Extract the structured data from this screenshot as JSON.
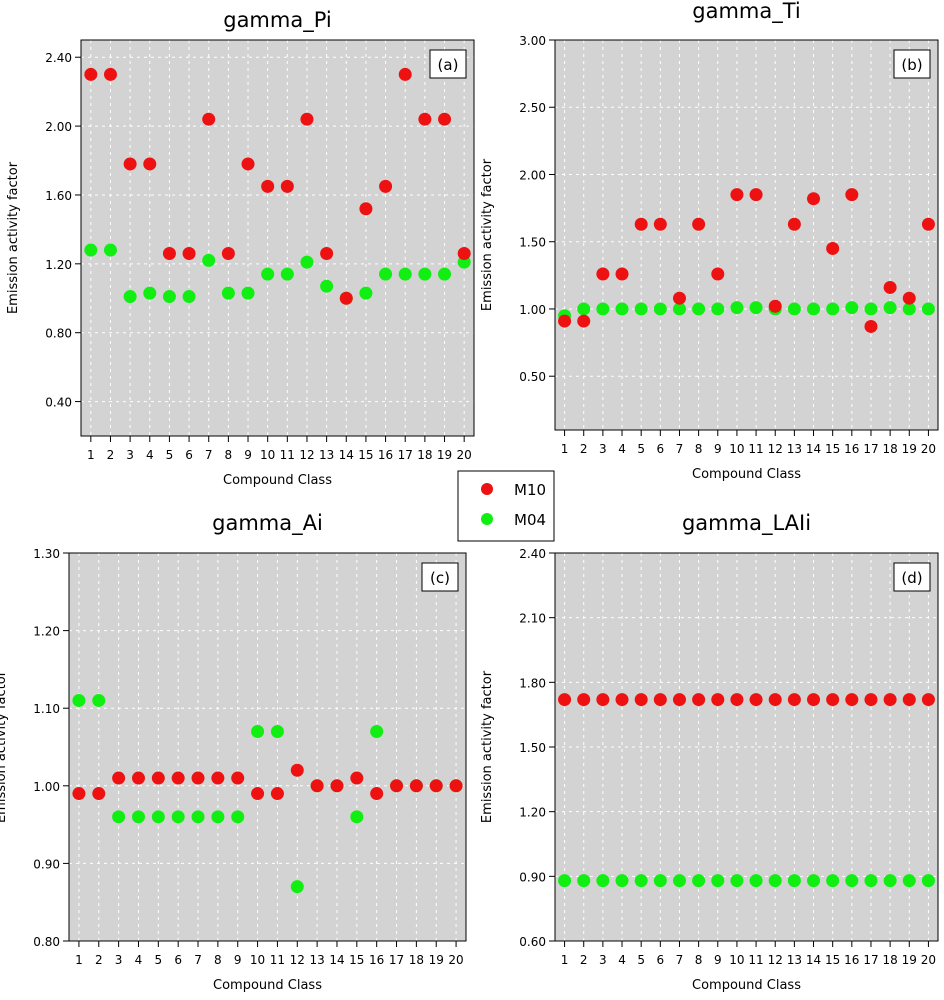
{
  "legend": {
    "items": [
      {
        "label": "M10",
        "color": "#ee1111"
      },
      {
        "label": "M04",
        "color": "#11ee11"
      }
    ]
  },
  "chart_data": [
    {
      "type": "scatter",
      "title": "gamma_Pi",
      "panel_label": "(a)",
      "xlabel": "Compound Class",
      "ylabel": "Emission activity factor",
      "x": [
        1,
        2,
        3,
        4,
        5,
        6,
        7,
        8,
        9,
        10,
        11,
        12,
        13,
        14,
        15,
        16,
        17,
        18,
        19,
        20
      ],
      "ylim": [
        0.2,
        2.5
      ],
      "yticks": [
        "0.40",
        "0.80",
        "1.20",
        "1.60",
        "2.00",
        "2.40"
      ],
      "background": "#d3d3d3",
      "grid": true,
      "legend_position": "center",
      "series": [
        {
          "name": "M10",
          "color": "#ee1111",
          "values": [
            2.3,
            2.3,
            1.78,
            1.78,
            1.26,
            1.26,
            2.04,
            1.26,
            1.78,
            1.65,
            1.65,
            2.04,
            1.26,
            1.0,
            1.52,
            1.65,
            2.3,
            2.04,
            2.04,
            1.26
          ]
        },
        {
          "name": "M04",
          "color": "#11ee11",
          "values": [
            1.28,
            1.28,
            1.01,
            1.03,
            1.01,
            1.01,
            1.22,
            1.03,
            1.03,
            1.14,
            1.14,
            1.21,
            1.07,
            1.0,
            1.03,
            1.14,
            1.14,
            1.14,
            1.14,
            1.21
          ]
        }
      ]
    },
    {
      "type": "scatter",
      "title": "gamma_Ti",
      "panel_label": "(b)",
      "xlabel": "Compound Class",
      "ylabel": "Emission activity factor",
      "x": [
        1,
        2,
        3,
        4,
        5,
        6,
        7,
        8,
        9,
        10,
        11,
        12,
        13,
        14,
        15,
        16,
        17,
        18,
        19,
        20
      ],
      "ylim": [
        0.1,
        3.0
      ],
      "yticks": [
        "0.50",
        "1.00",
        "1.50",
        "2.00",
        "2.50",
        "3.00"
      ],
      "background": "#d3d3d3",
      "grid": true,
      "series": [
        {
          "name": "M10",
          "color": "#ee1111",
          "values": [
            0.91,
            0.91,
            1.26,
            1.26,
            1.63,
            1.63,
            1.08,
            1.63,
            1.26,
            1.85,
            1.85,
            1.02,
            1.63,
            1.82,
            1.45,
            1.85,
            0.87,
            1.16,
            1.08,
            1.63
          ]
        },
        {
          "name": "M04",
          "color": "#11ee11",
          "values": [
            0.95,
            1.0,
            1.0,
            1.0,
            1.0,
            1.0,
            1.0,
            1.0,
            1.0,
            1.01,
            1.01,
            1.0,
            1.0,
            1.0,
            1.0,
            1.01,
            1.0,
            1.01,
            1.0,
            1.0
          ]
        }
      ]
    },
    {
      "type": "scatter",
      "title": "gamma_Ai",
      "panel_label": "(c)",
      "xlabel": "Compound Class",
      "ylabel": "Emission activity factor",
      "x": [
        1,
        2,
        3,
        4,
        5,
        6,
        7,
        8,
        9,
        10,
        11,
        12,
        13,
        14,
        15,
        16,
        17,
        18,
        19,
        20
      ],
      "ylim": [
        0.8,
        1.3
      ],
      "yticks": [
        "0.80",
        "0.90",
        "1.00",
        "1.10",
        "1.20",
        "1.30"
      ],
      "background": "#d3d3d3",
      "grid": true,
      "series": [
        {
          "name": "M10",
          "color": "#ee1111",
          "values": [
            0.99,
            0.99,
            1.01,
            1.01,
            1.01,
            1.01,
            1.01,
            1.01,
            1.01,
            0.99,
            0.99,
            1.02,
            1.0,
            1.0,
            1.01,
            0.99,
            1.0,
            1.0,
            1.0,
            1.0
          ]
        },
        {
          "name": "M04",
          "color": "#11ee11",
          "values": [
            1.11,
            1.11,
            0.96,
            0.96,
            0.96,
            0.96,
            0.96,
            0.96,
            0.96,
            1.07,
            1.07,
            0.87,
            1.0,
            1.0,
            0.96,
            1.07,
            1.0,
            1.0,
            1.0,
            1.0
          ]
        }
      ]
    },
    {
      "type": "scatter",
      "title": "gamma_LAIi",
      "panel_label": "(d)",
      "xlabel": "Compound Class",
      "ylabel": "Emission activity factor",
      "x": [
        1,
        2,
        3,
        4,
        5,
        6,
        7,
        8,
        9,
        10,
        11,
        12,
        13,
        14,
        15,
        16,
        17,
        18,
        19,
        20
      ],
      "ylim": [
        0.6,
        2.4
      ],
      "yticks": [
        "0.60",
        "0.90",
        "1.20",
        "1.50",
        "1.80",
        "2.10",
        "2.40"
      ],
      "background": "#d3d3d3",
      "grid": true,
      "series": [
        {
          "name": "M10",
          "color": "#ee1111",
          "values": [
            1.72,
            1.72,
            1.72,
            1.72,
            1.72,
            1.72,
            1.72,
            1.72,
            1.72,
            1.72,
            1.72,
            1.72,
            1.72,
            1.72,
            1.72,
            1.72,
            1.72,
            1.72,
            1.72,
            1.72
          ]
        },
        {
          "name": "M04",
          "color": "#11ee11",
          "values": [
            0.88,
            0.88,
            0.88,
            0.88,
            0.88,
            0.88,
            0.88,
            0.88,
            0.88,
            0.88,
            0.88,
            0.88,
            0.88,
            0.88,
            0.88,
            0.88,
            0.88,
            0.88,
            0.88,
            0.88
          ]
        }
      ]
    }
  ]
}
